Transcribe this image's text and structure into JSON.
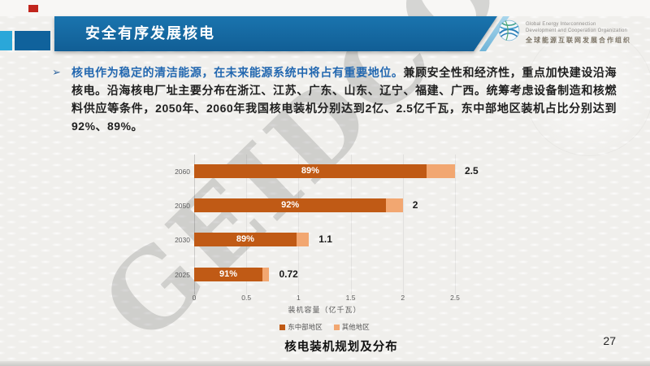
{
  "slide": {
    "header": {
      "title": "安全有序发展核电"
    },
    "logo": {
      "line1": "Global Energy Interconnection",
      "line2": "Development and Cooperation Organization",
      "line3": "全球能源互联网发展合作组织"
    },
    "body": {
      "bullet": "➢",
      "highlight": "核电作为稳定的清洁能源，在未来能源系统中将占有重要地位。",
      "rest": "兼顾安全性和经济性，重点加快建设沿海核电。沿海核电厂址主要分布在浙江、江苏、广东、山东、辽宁、福建、广西。统筹考虑设备制造和核燃料供应等条件，2050年、2060年我国核电装机分别达到2亿、2.5亿千瓦，东中部地区装机占比分别达到92%、89%。"
    },
    "watermark": "GEIDCO",
    "caption": "核电装机规划及分布",
    "page_number": "27"
  },
  "colors": {
    "title_bar_blue": "#14669f",
    "accent_red": "#c1261d",
    "accent_cyan": "#2aa7d9",
    "accent_blue": "#10629c",
    "highlight_text_blue": "#2368b0",
    "bar_east": "#c05a15",
    "bar_other": "#f2a771"
  },
  "icons": {
    "logo": "globe-icon"
  },
  "chart_data": {
    "type": "bar",
    "orientation": "horizontal",
    "categories": [
      "2060",
      "2050",
      "2030",
      "2025"
    ],
    "series": [
      {
        "name": "东中部地区",
        "values": [
          2.225,
          1.84,
          0.98,
          0.655
        ],
        "color": "#c05a15"
      },
      {
        "name": "其他地区",
        "values": [
          0.275,
          0.16,
          0.12,
          0.065
        ],
        "color": "#f2a771"
      }
    ],
    "totals": [
      2.5,
      2,
      1.1,
      0.72
    ],
    "total_labels": [
      "2.5",
      "2",
      "1.1",
      "0.72"
    ],
    "pct_labels": [
      "89%",
      "92%",
      "89%",
      "91%"
    ],
    "xlabel": "装机容量（亿千瓦）",
    "x_ticks": [
      "0",
      "0.5",
      "1",
      "1.5",
      "2",
      "2.5"
    ],
    "xlim": [
      0,
      2.5
    ],
    "grid": true,
    "legend_position": "bottom"
  }
}
